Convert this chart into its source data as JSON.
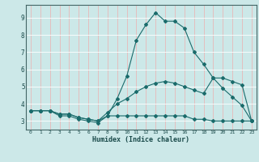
{
  "title": "",
  "xlabel": "Humidex (Indice chaleur)",
  "ylabel": "",
  "background_color": "#cce8e8",
  "grid_color": "#ffffff",
  "line_color": "#1a6b6b",
  "xlim": [
    -0.5,
    23.5
  ],
  "ylim": [
    2.5,
    9.75
  ],
  "xticks": [
    0,
    1,
    2,
    3,
    4,
    5,
    6,
    7,
    8,
    9,
    10,
    11,
    12,
    13,
    14,
    15,
    16,
    17,
    18,
    19,
    20,
    21,
    22,
    23
  ],
  "yticks": [
    3,
    4,
    5,
    6,
    7,
    8,
    9
  ],
  "line1_x": [
    0,
    1,
    2,
    3,
    4,
    5,
    6,
    7,
    8,
    9,
    10,
    11,
    12,
    13,
    14,
    15,
    16,
    17,
    18,
    19,
    20,
    21,
    22,
    23
  ],
  "line1_y": [
    3.6,
    3.6,
    3.6,
    3.3,
    3.3,
    3.1,
    3.0,
    2.9,
    3.3,
    4.3,
    5.6,
    7.7,
    8.6,
    9.3,
    8.8,
    8.8,
    8.4,
    7.0,
    6.3,
    5.5,
    4.9,
    4.4,
    3.9,
    3.0
  ],
  "line2_x": [
    0,
    1,
    2,
    3,
    4,
    5,
    6,
    7,
    8,
    9,
    10,
    11,
    12,
    13,
    14,
    15,
    16,
    17,
    18,
    19,
    20,
    21,
    22,
    23
  ],
  "line2_y": [
    3.6,
    3.6,
    3.6,
    3.4,
    3.4,
    3.2,
    3.1,
    3.0,
    3.5,
    4.0,
    4.3,
    4.7,
    5.0,
    5.2,
    5.3,
    5.2,
    5.0,
    4.8,
    4.6,
    5.5,
    5.5,
    5.3,
    5.1,
    3.0
  ],
  "line3_x": [
    0,
    1,
    2,
    3,
    4,
    5,
    6,
    7,
    8,
    9,
    10,
    11,
    12,
    13,
    14,
    15,
    16,
    17,
    18,
    19,
    20,
    21,
    22,
    23
  ],
  "line3_y": [
    3.6,
    3.6,
    3.6,
    3.4,
    3.4,
    3.2,
    3.1,
    3.0,
    3.3,
    3.3,
    3.3,
    3.3,
    3.3,
    3.3,
    3.3,
    3.3,
    3.3,
    3.1,
    3.1,
    3.0,
    3.0,
    3.0,
    3.0,
    3.0
  ]
}
